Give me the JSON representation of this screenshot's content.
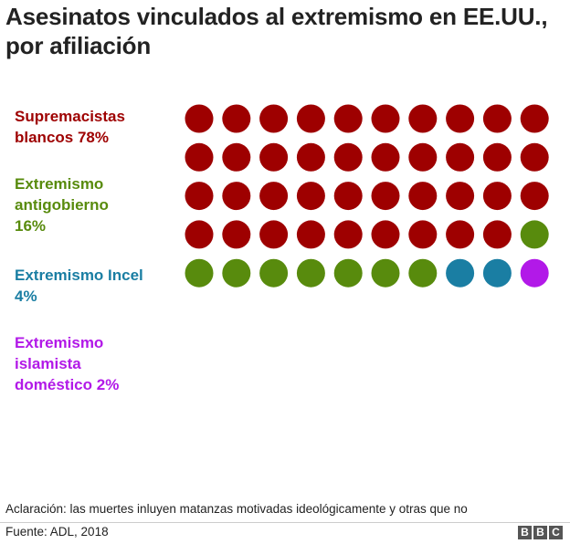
{
  "chart_data": {
    "type": "waffle",
    "title": "Asesinatos vinculados al extremismo en EE.UU., por afiliación",
    "total_units": 50,
    "columns": 10,
    "categories": [
      {
        "name": "Supremacistas\nblancos 78%",
        "percent": 78,
        "units": 39,
        "color": "#9e0000"
      },
      {
        "name": "Extremismo\nantigobierno\n16%",
        "percent": 16,
        "units": 8,
        "color": "#588b0d"
      },
      {
        "name": "Extremismo Incel\n4%",
        "percent": 4,
        "units": 2,
        "color": "#1a7ea3"
      },
      {
        "name": "Extremismo\nislamista\ndoméstico 2%",
        "percent": 2,
        "units": 1,
        "color": "#b219e8"
      }
    ]
  },
  "footer": {
    "note": "Aclaración: las muertes inluyen matanzas motivadas ideológicamente y otras que no",
    "source": "Fuente: ADL, 2018",
    "logo_letters": [
      "B",
      "B",
      "C"
    ]
  }
}
